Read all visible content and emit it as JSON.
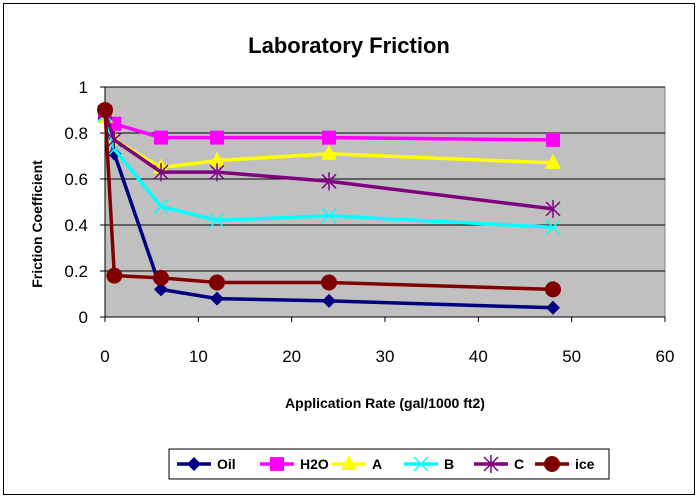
{
  "chart_data": {
    "type": "line",
    "title": "Laboratory Friction",
    "xlabel": "Application Rate (gal/1000 ft2)",
    "ylabel": "Friction Coefficient",
    "xlim": [
      0,
      60
    ],
    "ylim": [
      0,
      1
    ],
    "x_ticks": [
      "0",
      "10",
      "20",
      "30",
      "40",
      "50",
      "60"
    ],
    "y_ticks": [
      "0",
      "0.2",
      "0.4",
      "0.6",
      "0.8",
      "1"
    ],
    "grid": "horizontal",
    "plot_background": "#c0c0c0",
    "legend_position": "bottom",
    "series": [
      {
        "name": "Oil",
        "color": "#000080",
        "marker": "diamond",
        "points": [
          [
            0,
            0.88
          ],
          [
            1,
            0.71
          ],
          [
            6,
            0.12
          ],
          [
            12,
            0.08
          ],
          [
            24,
            0.07
          ],
          [
            48,
            0.04
          ]
        ]
      },
      {
        "name": "H2O",
        "color": "#ff00ff",
        "marker": "square",
        "points": [
          [
            0,
            0.88
          ],
          [
            1,
            0.84
          ],
          [
            6,
            0.78
          ],
          [
            12,
            0.78
          ],
          [
            24,
            0.78
          ],
          [
            48,
            0.77
          ]
        ]
      },
      {
        "name": "A",
        "color": "#ffff00",
        "marker": "triangle",
        "points": [
          [
            0,
            0.87
          ],
          [
            1,
            0.77
          ],
          [
            6,
            0.65
          ],
          [
            12,
            0.68
          ],
          [
            24,
            0.71
          ],
          [
            48,
            0.67
          ]
        ]
      },
      {
        "name": "B",
        "color": "#00ffff",
        "marker": "x",
        "points": [
          [
            0,
            0.88
          ],
          [
            1,
            0.73
          ],
          [
            6,
            0.48
          ],
          [
            12,
            0.42
          ],
          [
            24,
            0.44
          ],
          [
            48,
            0.39
          ]
        ]
      },
      {
        "name": "C",
        "color": "#800080",
        "marker": "star",
        "points": [
          [
            0,
            0.89
          ],
          [
            1,
            0.77
          ],
          [
            6,
            0.63
          ],
          [
            12,
            0.63
          ],
          [
            24,
            0.59
          ],
          [
            48,
            0.47
          ]
        ]
      },
      {
        "name": "ice",
        "color": "#800000",
        "marker": "circle",
        "points": [
          [
            0,
            0.9
          ],
          [
            1,
            0.18
          ],
          [
            6,
            0.17
          ],
          [
            12,
            0.15
          ],
          [
            24,
            0.15
          ],
          [
            48,
            0.12
          ]
        ]
      }
    ]
  }
}
